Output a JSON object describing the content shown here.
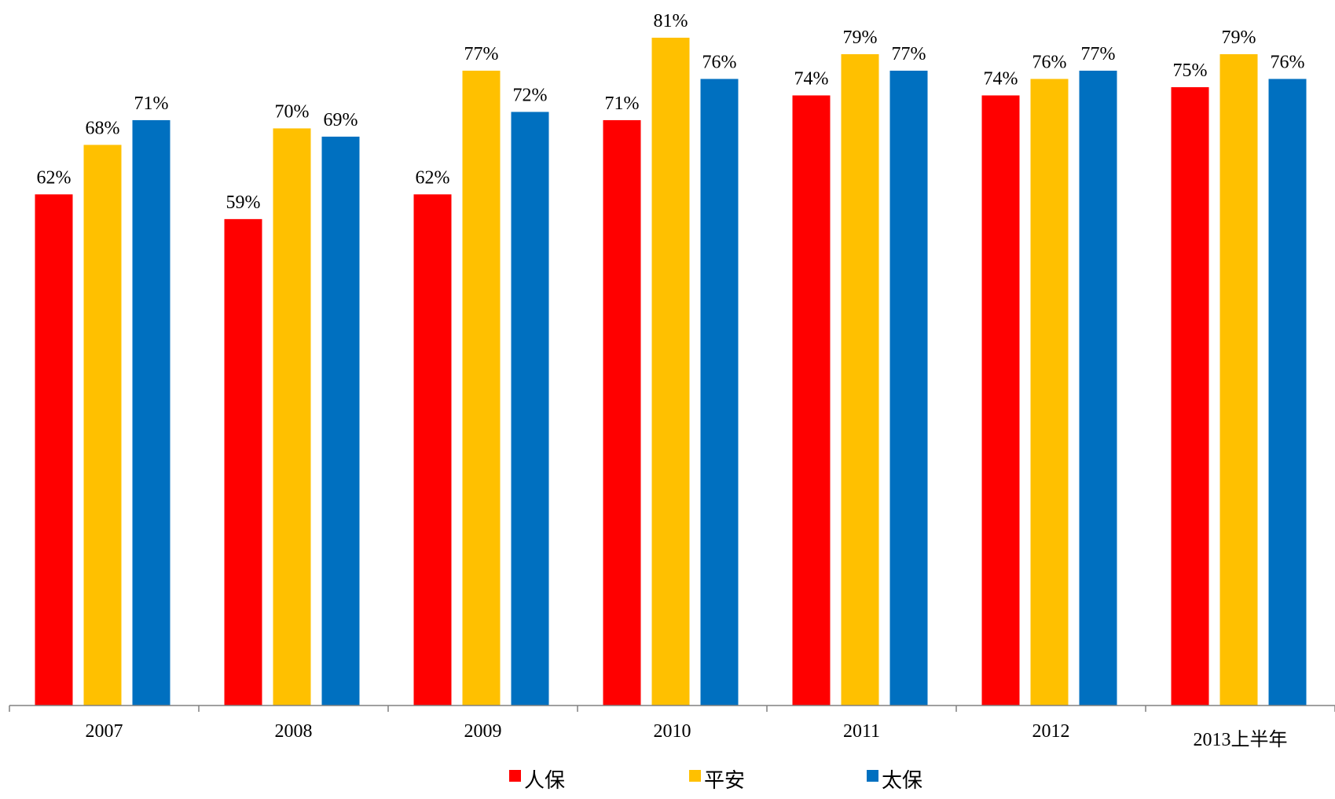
{
  "chart_data": {
    "type": "bar",
    "categories": [
      "2007",
      "2008",
      "2009",
      "2010",
      "2011",
      "2012",
      "2013上半年"
    ],
    "series": [
      {
        "name": "人保",
        "color": "#ff0000",
        "values": [
          62,
          59,
          62,
          71,
          74,
          74,
          75
        ],
        "labels": [
          "62%",
          "59%",
          "62%",
          "71%",
          "74%",
          "74%",
          "75%"
        ]
      },
      {
        "name": "平安",
        "color": "#ffc000",
        "values": [
          68,
          70,
          77,
          81,
          79,
          76,
          79
        ],
        "labels": [
          "68%",
          "70%",
          "77%",
          "81%",
          "79%",
          "76%",
          "79%"
        ]
      },
      {
        "name": "太保",
        "color": "#0070c0",
        "values": [
          71,
          69,
          72,
          76,
          77,
          77,
          76
        ],
        "labels": [
          "71%",
          "69%",
          "72%",
          "76%",
          "77%",
          "77%",
          "76%"
        ]
      }
    ],
    "title": "",
    "xlabel": "",
    "ylabel": "",
    "ylim": [
      0,
      85
    ],
    "grid": false,
    "legend_position": "bottom-center",
    "value_format": "percent"
  }
}
